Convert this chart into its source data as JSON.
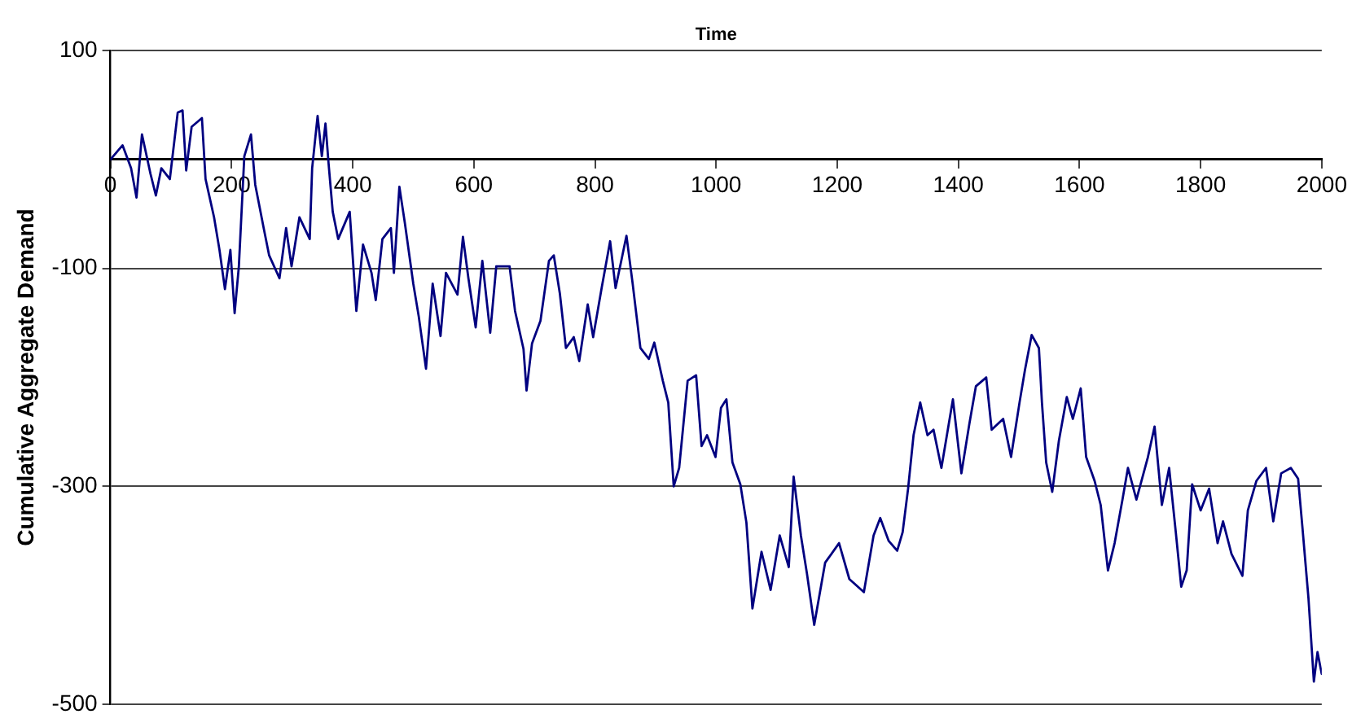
{
  "chart_data": {
    "type": "line",
    "xlabel": "Time",
    "ylabel": "Cumulative Aggregate Demand",
    "xlim": [
      0,
      2000
    ],
    "xticks": [
      0,
      200,
      400,
      600,
      800,
      1000,
      1200,
      1400,
      1600,
      1800,
      2000
    ],
    "ylim": [
      -500,
      100
    ],
    "yticks": [
      100,
      -100,
      -300,
      -500
    ],
    "grid": "y",
    "legend": false,
    "marker": "none",
    "line_style": "solid",
    "series": [
      {
        "color": "#000080",
        "x": [
          0,
          20,
          34,
          43,
          52,
          66,
          75,
          84,
          98,
          111,
          119,
          125,
          134,
          151,
          157,
          171,
          180,
          189,
          198,
          205,
          212,
          221,
          232,
          239,
          253,
          262,
          279,
          290,
          299,
          312,
          329,
          333,
          342,
          349,
          355,
          360,
          367,
          376,
          395,
          406,
          417,
          431,
          438,
          449,
          463,
          468,
          477,
          486,
          500,
          509,
          521,
          532,
          545,
          554,
          573,
          582,
          591,
          603,
          614,
          627,
          637,
          659,
          668,
          682,
          687,
          696,
          710,
          724,
          732,
          742,
          752,
          765,
          774,
          788,
          797,
          811,
          825,
          834,
          852,
          862,
          875,
          889,
          898,
          912,
          921,
          930,
          939,
          953,
          967,
          976,
          985,
          999,
          1008,
          1017,
          1027,
          1040,
          1050,
          1060,
          1075,
          1090,
          1105,
          1120,
          1128,
          1140,
          1150,
          1162,
          1180,
          1203,
          1220,
          1244,
          1260,
          1271,
          1285,
          1299,
          1308,
          1317,
          1326,
          1337,
          1349,
          1359,
          1372,
          1391,
          1405,
          1418,
          1429,
          1446,
          1455,
          1474,
          1487,
          1501,
          1510,
          1521,
          1533,
          1538,
          1545,
          1555,
          1566,
          1579,
          1589,
          1602,
          1611,
          1625,
          1635,
          1647,
          1658,
          1671,
          1680,
          1694,
          1713,
          1724,
          1736,
          1748,
          1759,
          1768,
          1777,
          1786,
          1800,
          1814,
          1828,
          1837,
          1851,
          1869,
          1878,
          1892,
          1908,
          1920,
          1933,
          1949,
          1961,
          1968,
          1978,
          1987,
          1993,
          2000
        ],
        "values": [
          0,
          13,
          -8,
          -35,
          23,
          -13,
          -33,
          -8,
          -18,
          43,
          45,
          -10,
          30,
          38,
          -18,
          -53,
          -83,
          -119,
          -83,
          -141,
          -98,
          3,
          23,
          -23,
          -63,
          -88,
          -109,
          -63,
          -98,
          -53,
          -73,
          -8,
          40,
          3,
          33,
          -3,
          -48,
          -73,
          -48,
          -139,
          -78,
          -104,
          -129,
          -73,
          -63,
          -104,
          -25,
          -58,
          -114,
          -144,
          -192,
          -114,
          -162,
          -104,
          -124,
          -71,
          -109,
          -154,
          -93,
          -159,
          -98,
          -98,
          -139,
          -174,
          -212,
          -169,
          -148,
          -93,
          -88,
          -123,
          -173,
          -163,
          -185,
          -133,
          -163,
          -118,
          -75,
          -118,
          -70,
          -113,
          -173,
          -183,
          -168,
          -203,
          -223,
          -300,
          -283,
          -203,
          -198,
          -263,
          -253,
          -273,
          -228,
          -220,
          -278,
          -298,
          -333,
          -412,
          -360,
          -395,
          -345,
          -374,
          -291,
          -345,
          -380,
          -427,
          -370,
          -352,
          -385,
          -397,
          -345,
          -329,
          -350,
          -359,
          -342,
          -302,
          -253,
          -223,
          -253,
          -248,
          -283,
          -220,
          -288,
          -243,
          -208,
          -200,
          -248,
          -238,
          -273,
          -223,
          -193,
          -161,
          -173,
          -223,
          -278,
          -305,
          -258,
          -218,
          -238,
          -210,
          -273,
          -295,
          -317,
          -377,
          -352,
          -312,
          -283,
          -312,
          -273,
          -245,
          -317,
          -283,
          -342,
          -392,
          -377,
          -298,
          -322,
          -302,
          -352,
          -332,
          -362,
          -382,
          -322,
          -295,
          -283,
          -332,
          -288,
          -283,
          -293,
          -337,
          -402,
          -479,
          -452,
          -472
        ]
      }
    ]
  }
}
